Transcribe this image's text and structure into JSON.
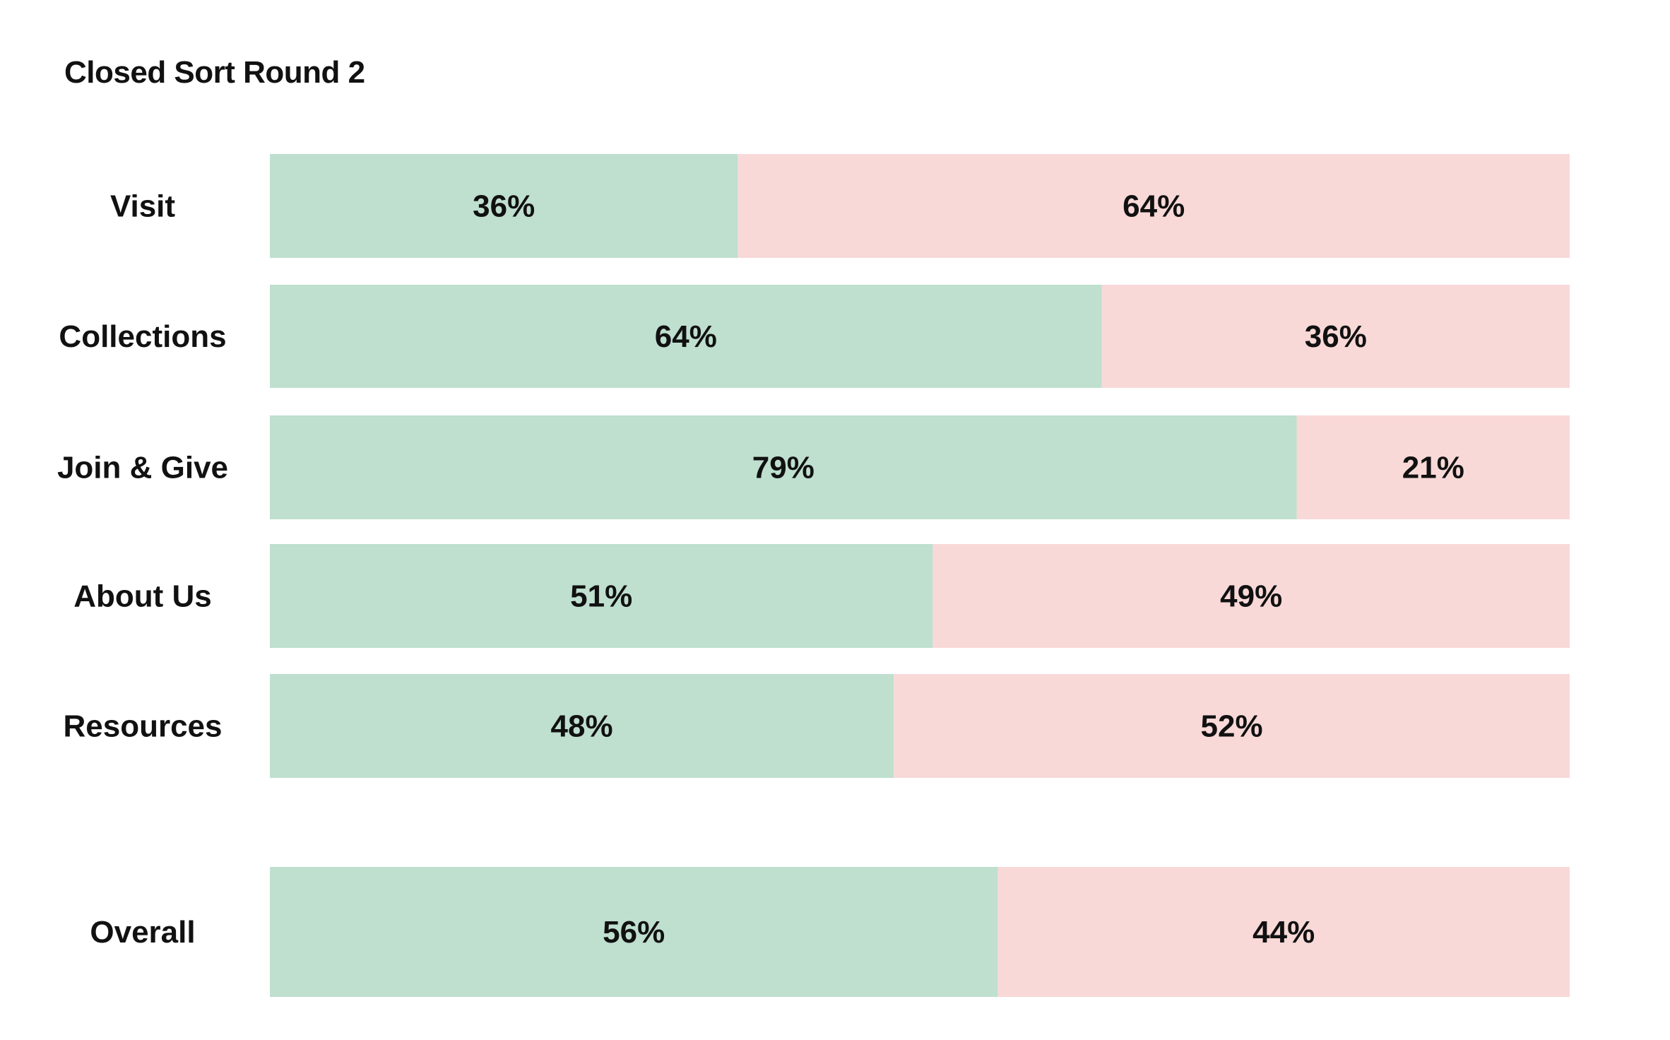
{
  "chart_data": {
    "type": "bar",
    "stacked": true,
    "orientation": "horizontal",
    "title": "Closed Sort Round 2",
    "categories": [
      "Visit",
      "Collections",
      "Join & Give",
      "About Us",
      "Resources",
      "Overall"
    ],
    "series": [
      {
        "values": [
          36,
          64,
          79,
          51,
          48,
          56
        ],
        "color": "#bfdfcf"
      },
      {
        "values": [
          64,
          36,
          21,
          49,
          52,
          44
        ],
        "color": "#f8d9d8"
      }
    ],
    "value_labels": [
      [
        "36%",
        "64%",
        "79%",
        "51%",
        "48%",
        "56%"
      ],
      [
        "64%",
        "36%",
        "21%",
        "49%",
        "52%",
        "44%"
      ]
    ],
    "xlim": [
      0,
      100
    ],
    "grid": false,
    "legend": "none"
  }
}
